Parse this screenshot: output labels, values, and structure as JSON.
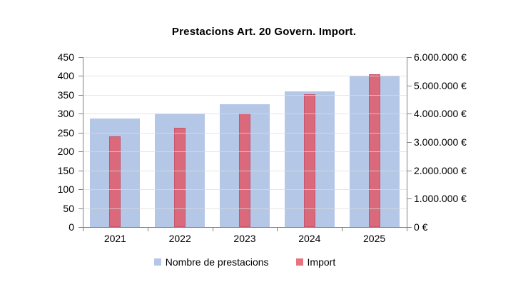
{
  "title": "Prestacions Art. 20 Govern. Import.",
  "colors": {
    "bar_blue": "#B5C7E7",
    "bar_pink": "#D9697B",
    "bar_pink_border": "#C5566C",
    "axis_gray": "#808080",
    "gridline_gray": "#DCDCDC"
  },
  "chart_data": {
    "type": "bar",
    "title": "Prestacions Art. 20 Govern. Import.",
    "categories": [
      "2021",
      "2022",
      "2023",
      "2024",
      "2025"
    ],
    "series": [
      {
        "name": "Nombre de prestacions",
        "axis": "left",
        "color": "#B5C7E7",
        "values": [
          287,
          301,
          325,
          360,
          400
        ]
      },
      {
        "name": "Import",
        "axis": "right",
        "color": "#D9697B",
        "values": [
          3200000,
          3500000,
          4000000,
          4700000,
          5400000
        ]
      }
    ],
    "left_axis": {
      "min": 0,
      "max": 450,
      "step": 50,
      "tick_labels": [
        "0",
        "50",
        "100",
        "150",
        "200",
        "250",
        "300",
        "350",
        "400",
        "450"
      ]
    },
    "right_axis": {
      "min": 0,
      "max": 6000000,
      "step": 1000000,
      "tick_labels": [
        "0 €",
        "1.000.000 €",
        "2.000.000 €",
        "3.000.000 €",
        "4.000.000 €",
        "5.000.000 €",
        "6.000.000 €"
      ]
    },
    "grid": true,
    "legend_position": "bottom"
  }
}
